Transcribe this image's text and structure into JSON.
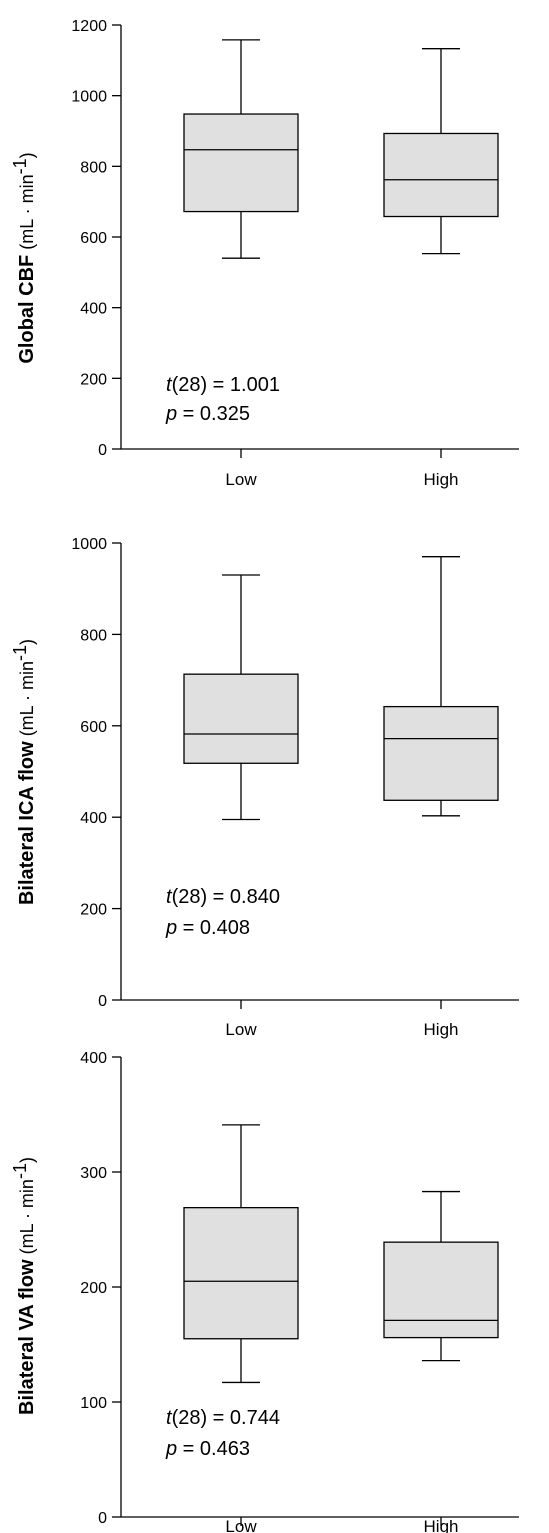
{
  "figure": {
    "panel_stats": [
      {
        "t_label": "t",
        "t_text": "(28) = 1.001",
        "p_label": "p",
        "p_text": " = 0.325"
      },
      {
        "t_label": "t",
        "t_text": "(28) = 0.840",
        "p_label": "p",
        "p_text": " = 0.408"
      },
      {
        "t_label": "t",
        "t_text": "(28) = 0.744",
        "p_label": "p",
        "p_text": " = 0.463"
      }
    ]
  },
  "colors": {
    "box_fill": "#e0e0e0",
    "stroke": "#000000",
    "background": "#ffffff"
  },
  "chart_data": [
    {
      "type": "box",
      "ylabel_bold": "Global CBF",
      "ylabel_unit_pre": " (mL · min",
      "ylabel_unit_sup": "-1",
      "ylabel_unit_post": ")",
      "ylim": [
        0,
        1200
      ],
      "yticks": [
        "0",
        "200",
        "400",
        "600",
        "800",
        "1000",
        "1200"
      ],
      "categories": [
        "Low",
        "High"
      ],
      "boxes": [
        {
          "category": "Low",
          "min": 540,
          "q1": 672,
          "median": 847,
          "q3": 948,
          "max": 1158
        },
        {
          "category": "High",
          "min": 553,
          "q1": 658,
          "median": 762,
          "q3": 893,
          "max": 1133
        }
      ]
    },
    {
      "type": "box",
      "ylabel_bold": "Bilateral ICA flow",
      "ylabel_unit_pre": " (mL · min",
      "ylabel_unit_sup": "-1",
      "ylabel_unit_post": ")",
      "ylim": [
        0,
        1000
      ],
      "yticks": [
        "0",
        "200",
        "400",
        "600",
        "800",
        "1000"
      ],
      "categories": [
        "Low",
        "High"
      ],
      "boxes": [
        {
          "category": "Low",
          "min": 395,
          "q1": 518,
          "median": 582,
          "q3": 713,
          "max": 930
        },
        {
          "category": "High",
          "min": 403,
          "q1": 437,
          "median": 572,
          "q3": 642,
          "max": 970
        }
      ]
    },
    {
      "type": "box",
      "ylabel_bold": "Bilateral VA flow",
      "ylabel_unit_pre": " (mL · min",
      "ylabel_unit_sup": "-1",
      "ylabel_unit_post": ")",
      "ylim": [
        0,
        400
      ],
      "yticks": [
        "0",
        "100",
        "200",
        "300",
        "400"
      ],
      "categories": [
        "Low",
        "High"
      ],
      "boxes": [
        {
          "category": "Low",
          "min": 117,
          "q1": 155,
          "median": 205,
          "q3": 269,
          "max": 341
        },
        {
          "category": "High",
          "min": 136,
          "q1": 156,
          "median": 171,
          "q3": 239,
          "max": 283
        }
      ]
    }
  ]
}
